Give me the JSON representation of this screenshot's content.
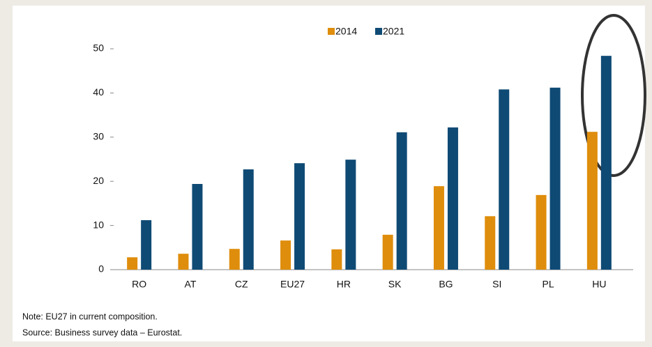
{
  "chart_data": {
    "type": "bar",
    "categories": [
      "RO",
      "AT",
      "CZ",
      "EU27",
      "HR",
      "SK",
      "BG",
      "SI",
      "PL",
      "HU"
    ],
    "series": [
      {
        "name": "2014",
        "color": "#df8d0c",
        "values": [
          2.8,
          3.6,
          4.7,
          6.6,
          4.6,
          7.9,
          18.9,
          12.1,
          16.9,
          31.2
        ]
      },
      {
        "name": "2021",
        "color": "#0f4a75",
        "values": [
          11.2,
          19.4,
          22.7,
          24.1,
          24.9,
          31.1,
          32.2,
          40.8,
          41.2,
          48.4
        ]
      }
    ],
    "ylim": [
      0,
      50
    ],
    "yticks": [
      0,
      10,
      20,
      30,
      40,
      50
    ],
    "grid": false,
    "legend": "top",
    "notes": [
      "Note: EU27 in current composition.",
      "Source: Business survey data – Eurostat."
    ]
  }
}
